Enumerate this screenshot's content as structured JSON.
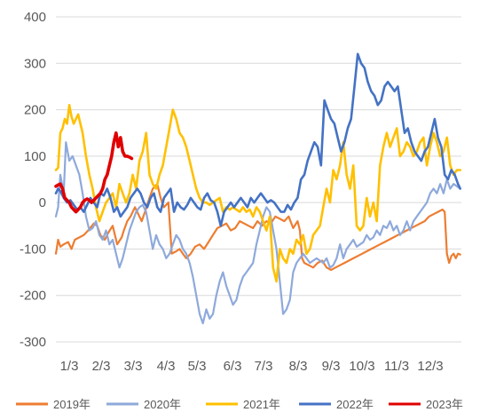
{
  "chart_data": {
    "type": "line",
    "title": "",
    "xlabel": "",
    "ylabel": "",
    "ylim": [
      -300,
      400
    ],
    "y_ticks": [
      "400",
      "300",
      "200",
      "100",
      "0",
      "-100",
      "-200",
      "-300"
    ],
    "x_ticks": [
      "1/3",
      "2/3",
      "3/3",
      "4/3",
      "5/3",
      "6/3",
      "7/3",
      "8/3",
      "9/3",
      "10/3",
      "11/3",
      "12/3"
    ],
    "grid": "horizontal",
    "legend": "bottom",
    "series": [
      {
        "name": "2019年",
        "color": "#ED7D31",
        "width": 2.2,
        "x": [
          1,
          3,
          5,
          8,
          12,
          15,
          18,
          22,
          26,
          30,
          35,
          38,
          41,
          45,
          48,
          52,
          56,
          60,
          62,
          65,
          68,
          72,
          75,
          78,
          81,
          85,
          88,
          92,
          95,
          98,
          102,
          105,
          109,
          112,
          115,
          118,
          122,
          126,
          130,
          134,
          138,
          142,
          146,
          150,
          154,
          158,
          162,
          166,
          170,
          174,
          178,
          182,
          186,
          190,
          194,
          198,
          202,
          206,
          210,
          214,
          218,
          220,
          222,
          224,
          228,
          232,
          236,
          240,
          244,
          248,
          252,
          256,
          260,
          264,
          268,
          272,
          276,
          280,
          284,
          288,
          292,
          296,
          300,
          304,
          308,
          312,
          316,
          320,
          324,
          328,
          332,
          336,
          340,
          344,
          348,
          350,
          352,
          354,
          356,
          358,
          360,
          362,
          364
        ],
        "y": [
          -110,
          -80,
          -95,
          -90,
          -85,
          -100,
          -80,
          -75,
          -70,
          -60,
          -45,
          -50,
          -70,
          -80,
          -65,
          -50,
          -90,
          -75,
          -60,
          -40,
          -30,
          -10,
          -25,
          -40,
          -20,
          10,
          30,
          40,
          10,
          -10,
          0,
          -110,
          -105,
          -100,
          -110,
          -120,
          -110,
          -95,
          -90,
          -100,
          -85,
          -70,
          -55,
          -50,
          -45,
          -60,
          -55,
          -40,
          -45,
          -50,
          -55,
          -40,
          -50,
          -40,
          -45,
          -30,
          -35,
          -40,
          -30,
          -55,
          -40,
          -60,
          -120,
          -130,
          -135,
          -140,
          -130,
          -125,
          -140,
          -145,
          -140,
          -135,
          -130,
          -125,
          -120,
          -115,
          -110,
          -105,
          -100,
          -95,
          -90,
          -85,
          -80,
          -75,
          -70,
          -65,
          -60,
          -55,
          -50,
          -45,
          -40,
          -30,
          -25,
          -20,
          -15,
          -20,
          -110,
          -130,
          -115,
          -110,
          -120,
          -110,
          -112
        ]
      },
      {
        "name": "2020年",
        "color": "#8EA9DB",
        "width": 2.2,
        "x": [
          1,
          3,
          5,
          8,
          10,
          13,
          16,
          19,
          22,
          25,
          28,
          31,
          34,
          37,
          40,
          43,
          46,
          49,
          52,
          55,
          58,
          61,
          64,
          67,
          70,
          73,
          76,
          79,
          82,
          85,
          88,
          91,
          94,
          97,
          100,
          103,
          106,
          109,
          112,
          115,
          118,
          121,
          124,
          127,
          130,
          133,
          136,
          139,
          142,
          145,
          148,
          151,
          154,
          157,
          160,
          163,
          166,
          169,
          172,
          175,
          178,
          181,
          184,
          187,
          190,
          193,
          196,
          199,
          202,
          205,
          208,
          211,
          214,
          217,
          220,
          223,
          226,
          229,
          232,
          235,
          238,
          241,
          244,
          247,
          250,
          253,
          256,
          259,
          262,
          265,
          268,
          271,
          274,
          277,
          280,
          283,
          286,
          289,
          292,
          295,
          298,
          301,
          304,
          307,
          310,
          313,
          316,
          319,
          322,
          325,
          328,
          331,
          334,
          337,
          340,
          343,
          346,
          349,
          352,
          355,
          358,
          361,
          364
        ],
        "y": [
          -30,
          -10,
          60,
          20,
          130,
          90,
          100,
          80,
          60,
          20,
          -30,
          -60,
          -55,
          -40,
          -70,
          -80,
          -60,
          -90,
          -80,
          -110,
          -140,
          -120,
          -90,
          -60,
          -40,
          -20,
          -10,
          -5,
          -20,
          -60,
          -100,
          -70,
          -90,
          -100,
          -120,
          -110,
          -90,
          -70,
          -80,
          -100,
          -110,
          -130,
          -160,
          -200,
          -240,
          -260,
          -230,
          -250,
          -240,
          -200,
          -170,
          -150,
          -180,
          -200,
          -220,
          -210,
          -180,
          -160,
          -150,
          -140,
          -130,
          -90,
          -60,
          -30,
          -10,
          -20,
          -60,
          -100,
          -170,
          -240,
          -230,
          -210,
          -150,
          -130,
          -120,
          -110,
          -120,
          -130,
          -125,
          -120,
          -125,
          -130,
          -120,
          -140,
          -135,
          -120,
          -90,
          -120,
          -100,
          -90,
          -80,
          -95,
          -90,
          -85,
          -70,
          -80,
          -75,
          -60,
          -70,
          -50,
          -55,
          -40,
          -60,
          -50,
          -70,
          -60,
          -40,
          -60,
          -40,
          -30,
          -20,
          -10,
          0,
          20,
          30,
          20,
          40,
          20,
          50,
          30,
          40,
          35,
          30
        ]
      },
      {
        "name": "2021年",
        "color": "#FFC000",
        "width": 2.6,
        "x": [
          1,
          3,
          5,
          7,
          9,
          11,
          13,
          15,
          17,
          19,
          21,
          23,
          25,
          28,
          31,
          34,
          37,
          40,
          43,
          46,
          49,
          52,
          55,
          58,
          61,
          64,
          67,
          70,
          73,
          76,
          79,
          82,
          85,
          88,
          91,
          94,
          97,
          100,
          103,
          106,
          109,
          112,
          115,
          118,
          121,
          124,
          127,
          130,
          133,
          136,
          139,
          142,
          145,
          148,
          151,
          154,
          157,
          160,
          163,
          166,
          169,
          172,
          175,
          178,
          181,
          184,
          187,
          190,
          193,
          196,
          199,
          202,
          205,
          208,
          211,
          214,
          217,
          220,
          223,
          226,
          229,
          232,
          235,
          238,
          241,
          244,
          247,
          250,
          253,
          256,
          259,
          262,
          265,
          268,
          271,
          274,
          277,
          280,
          283,
          286,
          289,
          292,
          295,
          298,
          301,
          304,
          307,
          310,
          313,
          316,
          319,
          322,
          325,
          328,
          331,
          334,
          337,
          340,
          343,
          346,
          349,
          352,
          355,
          358,
          361,
          364
        ],
        "y": [
          70,
          75,
          150,
          160,
          180,
          170,
          210,
          185,
          170,
          180,
          190,
          170,
          150,
          100,
          60,
          30,
          -10,
          -40,
          -20,
          0,
          10,
          20,
          -10,
          40,
          20,
          0,
          20,
          60,
          30,
          90,
          110,
          150,
          60,
          40,
          30,
          60,
          80,
          120,
          160,
          200,
          180,
          150,
          140,
          120,
          90,
          60,
          30,
          10,
          0,
          0,
          -5,
          0,
          5,
          10,
          -20,
          -10,
          -15,
          -10,
          -15,
          -20,
          -10,
          -20,
          -15,
          -30,
          -10,
          -20,
          -40,
          -60,
          -30,
          -140,
          -170,
          -100,
          -120,
          -130,
          -100,
          -110,
          -80,
          -90,
          -70,
          -110,
          -100,
          -70,
          -60,
          -50,
          -10,
          30,
          0,
          70,
          50,
          80,
          130,
          60,
          30,
          80,
          -50,
          -60,
          -50,
          10,
          -30,
          0,
          -40,
          80,
          120,
          150,
          120,
          140,
          160,
          100,
          110,
          130,
          120,
          100,
          110,
          130,
          140,
          80,
          120,
          150,
          130,
          100,
          110,
          140,
          80,
          60,
          70,
          70
        ]
      },
      {
        "name": "2022年",
        "color": "#4472C4",
        "width": 2.6,
        "x": [
          1,
          3,
          5,
          8,
          11,
          14,
          17,
          20,
          23,
          26,
          29,
          32,
          35,
          38,
          41,
          44,
          47,
          50,
          53,
          56,
          59,
          62,
          65,
          68,
          71,
          74,
          77,
          80,
          83,
          86,
          89,
          92,
          95,
          98,
          101,
          104,
          107,
          110,
          113,
          116,
          119,
          122,
          125,
          128,
          131,
          134,
          137,
          140,
          143,
          146,
          149,
          152,
          155,
          158,
          161,
          164,
          167,
          170,
          173,
          176,
          179,
          182,
          185,
          188,
          191,
          194,
          197,
          200,
          203,
          206,
          209,
          212,
          215,
          218,
          221,
          224,
          227,
          230,
          233,
          236,
          239,
          242,
          245,
          248,
          251,
          254,
          257,
          260,
          263,
          266,
          269,
          272,
          275,
          278,
          281,
          284,
          287,
          290,
          293,
          296,
          299,
          302,
          305,
          308,
          311,
          314,
          317,
          320,
          323,
          326,
          329,
          332,
          335,
          338,
          341,
          344,
          347,
          350,
          353,
          356,
          359,
          362,
          364
        ],
        "y": [
          20,
          30,
          25,
          10,
          0,
          5,
          -5,
          -15,
          -10,
          -20,
          -5,
          10,
          0,
          -10,
          20,
          15,
          30,
          10,
          -20,
          -10,
          -30,
          -20,
          -10,
          10,
          20,
          30,
          20,
          0,
          -10,
          10,
          20,
          -10,
          -20,
          10,
          20,
          30,
          -20,
          0,
          -10,
          -15,
          -5,
          10,
          0,
          -10,
          -15,
          10,
          20,
          5,
          0,
          -20,
          -50,
          -20,
          -10,
          0,
          -10,
          0,
          10,
          0,
          -10,
          10,
          0,
          10,
          20,
          10,
          0,
          5,
          0,
          -10,
          -20,
          -20,
          -5,
          -15,
          0,
          10,
          50,
          60,
          90,
          110,
          130,
          120,
          80,
          220,
          200,
          180,
          170,
          140,
          110,
          130,
          160,
          180,
          250,
          320,
          300,
          290,
          260,
          240,
          230,
          210,
          220,
          250,
          260,
          250,
          240,
          250,
          200,
          150,
          160,
          130,
          110,
          100,
          90,
          110,
          120,
          150,
          180,
          140,
          120,
          60,
          50,
          70,
          60,
          40,
          30
        ]
      },
      {
        "name": "2023年",
        "color": "#E00000",
        "width": 3.6,
        "x": [
          1,
          3,
          5,
          7,
          9,
          11,
          13,
          15,
          17,
          19,
          21,
          23,
          25,
          27,
          29,
          31,
          33,
          35,
          37,
          39,
          41,
          43,
          45,
          47,
          49,
          51,
          53,
          55,
          57,
          59,
          61,
          63,
          65,
          67,
          69
        ],
        "y": [
          35,
          38,
          40,
          30,
          10,
          5,
          0,
          -10,
          -15,
          -20,
          -15,
          -10,
          0,
          5,
          8,
          5,
          0,
          5,
          10,
          15,
          20,
          30,
          50,
          60,
          80,
          100,
          130,
          150,
          120,
          140,
          110,
          100,
          100,
          98,
          95
        ]
      }
    ]
  }
}
